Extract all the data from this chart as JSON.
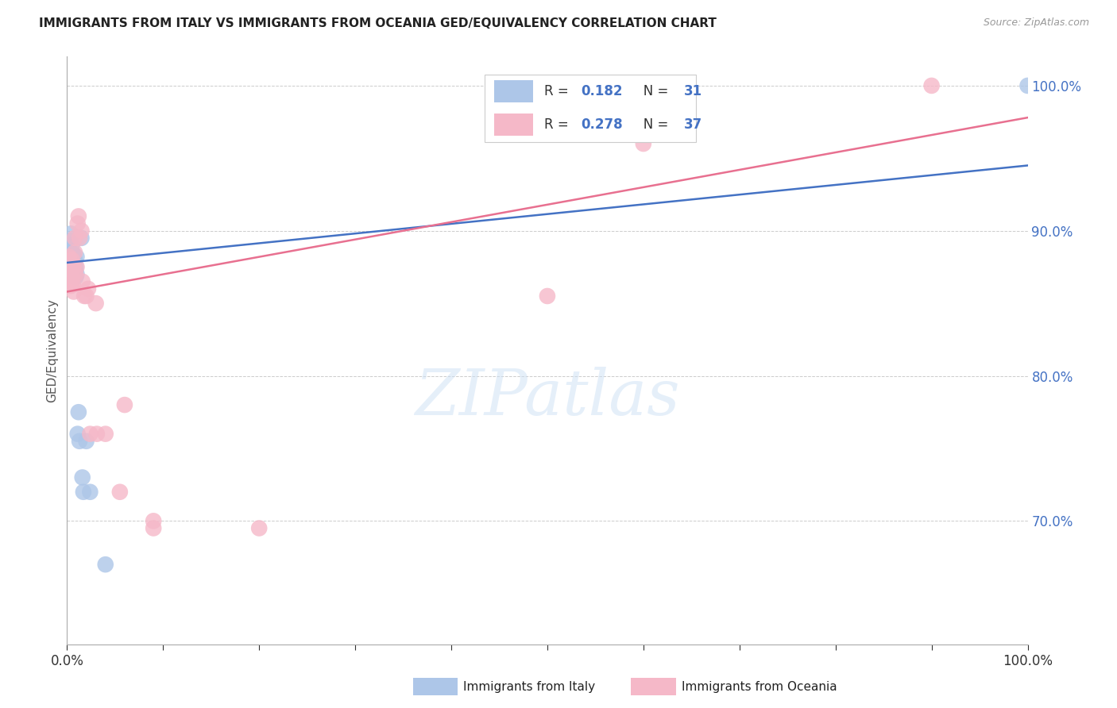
{
  "title": "IMMIGRANTS FROM ITALY VS IMMIGRANTS FROM OCEANIA GED/EQUIVALENCY CORRELATION CHART",
  "source": "Source: ZipAtlas.com",
  "ylabel": "GED/Equivalency",
  "xlim": [
    0.0,
    1.0
  ],
  "ylim": [
    0.615,
    1.02
  ],
  "xticks": [
    0.0,
    0.1,
    0.2,
    0.3,
    0.4,
    0.5,
    0.6,
    0.7,
    0.8,
    0.9,
    1.0
  ],
  "xtick_labels_show": [
    "0.0%",
    "100.0%"
  ],
  "yticks": [
    0.7,
    0.8,
    0.9,
    1.0
  ],
  "ytick_labels": [
    "70.0%",
    "80.0%",
    "90.0%",
    "100.0%"
  ],
  "legend_italy": "Immigrants from Italy",
  "legend_oceania": "Immigrants from Oceania",
  "blue_color": "#adc6e8",
  "pink_color": "#f5b8c8",
  "blue_line_color": "#4472C4",
  "pink_line_color": "#e87090",
  "R_blue": "0.182",
  "N_blue": "31",
  "R_pink": "0.278",
  "N_pink": "37",
  "watermark": "ZIPatlas",
  "blue_line_x0": 0.0,
  "blue_line_y0": 0.878,
  "blue_line_x1": 1.0,
  "blue_line_y1": 0.945,
  "pink_line_x0": 0.0,
  "pink_line_y0": 0.858,
  "pink_line_x1": 1.0,
  "pink_line_y1": 0.978,
  "italy_x": [
    0.001,
    0.002,
    0.002,
    0.003,
    0.003,
    0.004,
    0.004,
    0.005,
    0.005,
    0.005,
    0.006,
    0.006,
    0.007,
    0.007,
    0.007,
    0.008,
    0.008,
    0.009,
    0.009,
    0.01,
    0.01,
    0.011,
    0.012,
    0.013,
    0.015,
    0.016,
    0.017,
    0.02,
    0.024,
    0.04,
    1.0
  ],
  "italy_y": [
    0.877,
    0.883,
    0.888,
    0.881,
    0.893,
    0.876,
    0.898,
    0.875,
    0.882,
    0.89,
    0.877,
    0.885,
    0.872,
    0.883,
    0.875,
    0.87,
    0.88,
    0.875,
    0.868,
    0.87,
    0.882,
    0.76,
    0.775,
    0.755,
    0.895,
    0.73,
    0.72,
    0.755,
    0.72,
    0.67,
    1.0
  ],
  "oceania_x": [
    0.001,
    0.002,
    0.002,
    0.003,
    0.003,
    0.004,
    0.004,
    0.005,
    0.005,
    0.006,
    0.006,
    0.007,
    0.007,
    0.008,
    0.008,
    0.009,
    0.01,
    0.011,
    0.012,
    0.013,
    0.015,
    0.016,
    0.018,
    0.02,
    0.022,
    0.024,
    0.03,
    0.031,
    0.04,
    0.055,
    0.06,
    0.09,
    0.09,
    0.2,
    0.5,
    0.6,
    0.9
  ],
  "oceania_y": [
    0.875,
    0.878,
    0.882,
    0.873,
    0.866,
    0.87,
    0.862,
    0.88,
    0.868,
    0.875,
    0.863,
    0.875,
    0.858,
    0.885,
    0.895,
    0.87,
    0.875,
    0.905,
    0.91,
    0.895,
    0.9,
    0.865,
    0.855,
    0.855,
    0.86,
    0.76,
    0.85,
    0.76,
    0.76,
    0.72,
    0.78,
    0.695,
    0.7,
    0.695,
    0.855,
    0.96,
    1.0
  ]
}
